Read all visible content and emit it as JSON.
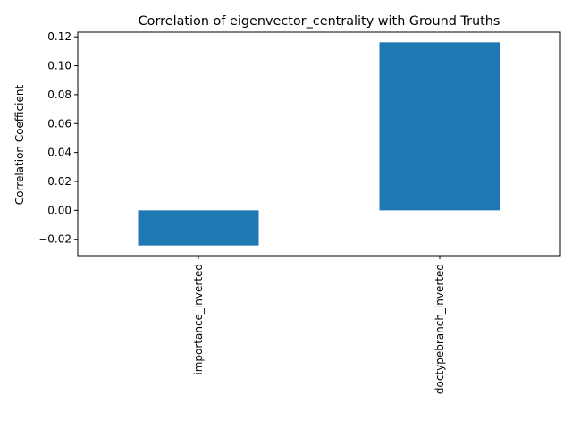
{
  "chart_data": {
    "type": "bar",
    "title": "Correlation of eigenvector_centrality with Ground Truths",
    "xlabel": "",
    "ylabel": "Correlation Coefficient",
    "categories": [
      "importance_inverted",
      "doctypebranch_inverted"
    ],
    "values": [
      -0.0243,
      0.1162
    ],
    "ylim": [
      -0.0313,
      0.1232
    ],
    "yticks": [
      -0.02,
      0.0,
      0.02,
      0.04,
      0.06,
      0.08,
      0.1,
      0.12
    ],
    "ytick_labels": [
      "−0.02",
      "0.00",
      "0.02",
      "0.04",
      "0.06",
      "0.08",
      "0.10",
      "0.12"
    ],
    "bar_color": "#1f77b4",
    "grid": false,
    "legend": "none"
  }
}
